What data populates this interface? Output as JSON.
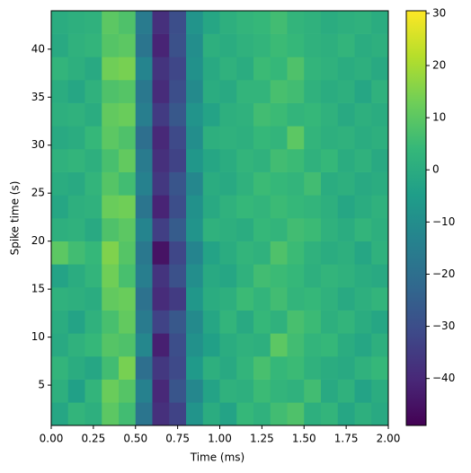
{
  "chart_data": {
    "type": "heatmap",
    "xlabel": "Time (ms)",
    "ylabel": "Spike time (s)",
    "colormap": "viridis",
    "xlim": [
      0,
      2
    ],
    "ylim": [
      0.8,
      44
    ],
    "xticks": [
      {
        "value": 0,
        "label": "0.00"
      },
      0.25,
      {
        "value": 0.5,
        "label": "0.50"
      },
      0.75,
      {
        "value": 1,
        "label": "1.00"
      },
      1.25,
      {
        "value": 1.5,
        "label": "1.50"
      },
      1.75,
      {
        "value": 2,
        "label": "2.00"
      }
    ],
    "yticks": [
      5,
      10,
      15,
      20,
      25,
      30,
      35,
      40
    ],
    "clim": [
      -49,
      30.5
    ],
    "colorbar_ticks": [
      {
        "value": -40,
        "label": "−40"
      },
      {
        "value": -30,
        "label": "−30"
      },
      {
        "value": -20,
        "label": "−20"
      },
      {
        "value": -10,
        "label": "−10"
      },
      0,
      10,
      20,
      30
    ],
    "values": [
      [
        -2,
        3,
        1,
        10,
        6,
        -18,
        -38,
        -33,
        -8,
        0,
        -3,
        4,
        2,
        6,
        8,
        1,
        3,
        -2,
        1,
        -1
      ],
      [
        1,
        -4,
        3,
        12,
        9,
        -14,
        -40,
        -28,
        -12,
        -3,
        2,
        1,
        5,
        3,
        2,
        6,
        -1,
        2,
        -3,
        0
      ],
      [
        3,
        0,
        -2,
        6,
        14,
        -20,
        -36,
        -31,
        -6,
        1,
        -1,
        3,
        7,
        4,
        5,
        2,
        0,
        -1,
        2,
        4
      ],
      [
        -1,
        2,
        4,
        9,
        8,
        -12,
        -42,
        -30,
        -9,
        -4,
        0,
        2,
        1,
        10,
        6,
        3,
        4,
        0,
        -2,
        1
      ],
      [
        0,
        -3,
        2,
        7,
        11,
        -16,
        -33,
        -27,
        -11,
        -2,
        3,
        -1,
        4,
        2,
        7,
        5,
        1,
        3,
        0,
        -2
      ],
      [
        2,
        1,
        0,
        11,
        12,
        -19,
        -39,
        -35,
        -7,
        0,
        1,
        5,
        3,
        6,
        3,
        4,
        2,
        -1,
        1,
        3
      ],
      [
        -3,
        0,
        3,
        13,
        7,
        -15,
        -37,
        -29,
        -10,
        -1,
        -2,
        2,
        6,
        5,
        4,
        1,
        3,
        2,
        0,
        -1
      ],
      [
        10,
        6,
        4,
        15,
        9,
        -17,
        -45,
        -32,
        -13,
        -3,
        0,
        3,
        2,
        8,
        5,
        2,
        0,
        1,
        -2,
        2
      ],
      [
        1,
        2,
        -1,
        8,
        10,
        -13,
        -34,
        -26,
        -8,
        2,
        1,
        0,
        4,
        3,
        6,
        5,
        2,
        0,
        3,
        1
      ],
      [
        -2,
        1,
        2,
        12,
        13,
        -18,
        -41,
        -30,
        -9,
        -1,
        2,
        4,
        3,
        5,
        4,
        3,
        1,
        -2,
        0,
        2
      ],
      [
        0,
        -1,
        3,
        9,
        6,
        -14,
        -36,
        -28,
        -12,
        0,
        -1,
        2,
        5,
        4,
        3,
        6,
        0,
        1,
        -1,
        0
      ],
      [
        2,
        3,
        1,
        7,
        11,
        -16,
        -38,
        -33,
        -7,
        -2,
        0,
        3,
        2,
        6,
        5,
        2,
        4,
        0,
        2,
        -1
      ],
      [
        -1,
        0,
        4,
        10,
        8,
        -20,
        -40,
        -31,
        -10,
        1,
        2,
        1,
        4,
        3,
        10,
        3,
        1,
        2,
        0,
        1
      ],
      [
        1,
        2,
        0,
        11,
        12,
        -15,
        -35,
        -27,
        -8,
        -3,
        1,
        2,
        6,
        5,
        3,
        4,
        2,
        -1,
        1,
        0
      ],
      [
        0,
        -2,
        2,
        8,
        9,
        -17,
        -39,
        -30,
        -11,
        0,
        -1,
        3,
        3,
        7,
        6,
        2,
        0,
        1,
        -2,
        2
      ],
      [
        3,
        1,
        -1,
        13,
        14,
        -13,
        -37,
        -32,
        -9,
        -1,
        2,
        0,
        5,
        4,
        8,
        3,
        2,
        0,
        1,
        -1
      ],
      [
        -1,
        2,
        3,
        9,
        10,
        -18,
        -41,
        -29,
        -10,
        1,
        0,
        2,
        3,
        5,
        4,
        2,
        1,
        3,
        0,
        1
      ],
      [
        0,
        1,
        2,
        10,
        8,
        -16,
        -38,
        -30,
        -8,
        -2,
        1,
        3,
        4,
        6,
        3,
        2,
        0,
        1,
        2,
        0
      ]
    ]
  }
}
